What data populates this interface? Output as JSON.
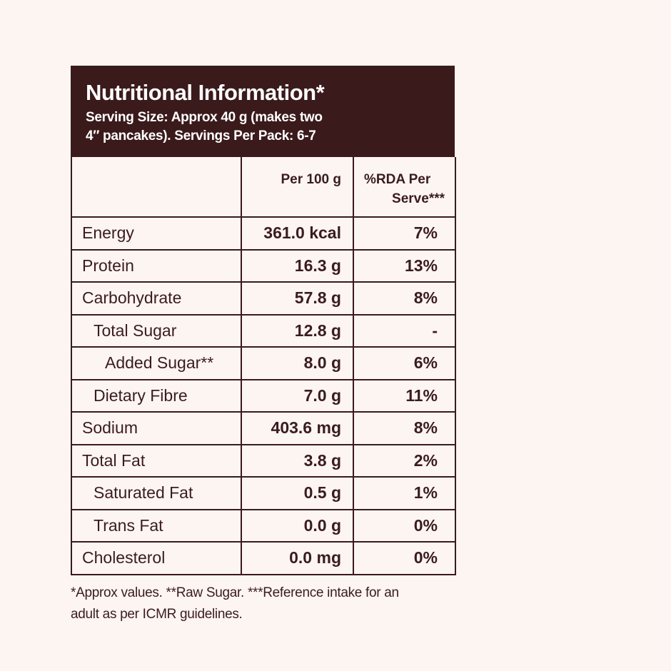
{
  "header": {
    "title": "Nutritional Information*",
    "subtitle_line1": "Serving Size: Approx 40 g (makes two",
    "subtitle_line2": "4″ pancakes). Servings Per Pack: 6-7"
  },
  "table": {
    "columns": [
      "",
      "Per 100 g",
      "%RDA Per",
      "Serve***"
    ],
    "rows": [
      {
        "name": "Energy",
        "per100": "361.0 kcal",
        "rda": "7%",
        "indent": 0
      },
      {
        "name": "Protein",
        "per100": "16.3 g",
        "rda": "13%",
        "indent": 0
      },
      {
        "name": "Carbohydrate",
        "per100": "57.8 g",
        "rda": "8%",
        "indent": 0
      },
      {
        "name": "Total Sugar",
        "per100": "12.8 g",
        "rda": "-",
        "indent": 1
      },
      {
        "name": "Added Sugar**",
        "per100": "8.0 g",
        "rda": "6%",
        "indent": 2
      },
      {
        "name": "Dietary Fibre",
        "per100": "7.0 g",
        "rda": "11%",
        "indent": 1
      },
      {
        "name": "Sodium",
        "per100": "403.6 mg",
        "rda": "8%",
        "indent": 0
      },
      {
        "name": "Total Fat",
        "per100": "3.8 g",
        "rda": "2%",
        "indent": 0
      },
      {
        "name": "Saturated Fat",
        "per100": "0.5 g",
        "rda": "1%",
        "indent": 1
      },
      {
        "name": "Trans Fat",
        "per100": "0.0 g",
        "rda": "0%",
        "indent": 1
      },
      {
        "name": "Cholesterol",
        "per100": "0.0 mg",
        "rda": "0%",
        "indent": 0
      }
    ]
  },
  "footnote": {
    "line1": "*Approx values. **Raw Sugar. ***Reference intake for an",
    "line2": "adult as per ICMR guidelines."
  },
  "colors": {
    "dark": "#3b1a1b",
    "background": "#fdf5f2"
  }
}
